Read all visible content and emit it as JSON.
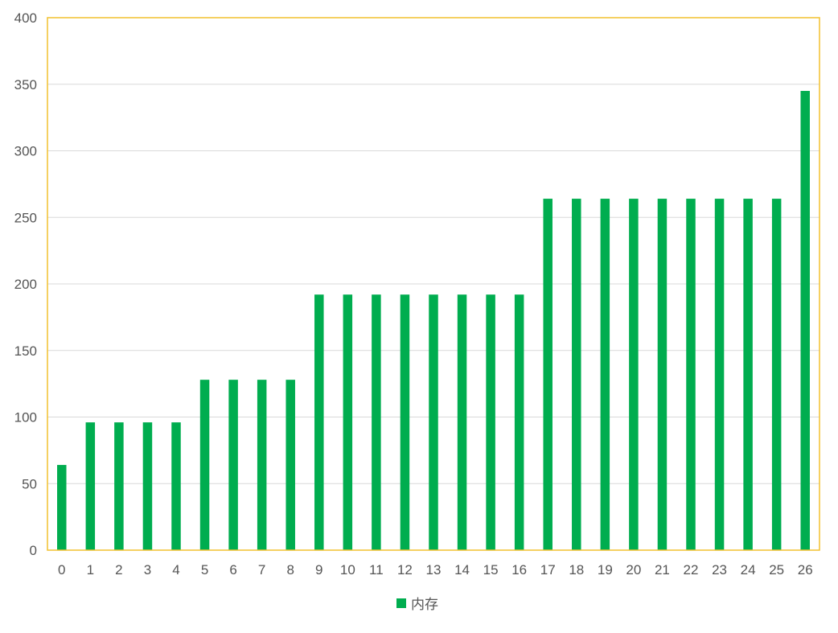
{
  "chart_data": {
    "type": "bar",
    "categories": [
      "0",
      "1",
      "2",
      "3",
      "4",
      "5",
      "6",
      "7",
      "8",
      "9",
      "10",
      "11",
      "12",
      "13",
      "14",
      "15",
      "16",
      "17",
      "18",
      "19",
      "20",
      "21",
      "22",
      "23",
      "24",
      "25",
      "26"
    ],
    "series": [
      {
        "name": "内存",
        "values": [
          64,
          96,
          96,
          96,
          96,
          128,
          128,
          128,
          128,
          192,
          192,
          192,
          192,
          192,
          192,
          192,
          192,
          264,
          264,
          264,
          264,
          264,
          264,
          264,
          264,
          264,
          345
        ]
      }
    ],
    "title": "",
    "xlabel": "",
    "ylabel": "",
    "ylim": [
      0,
      400
    ],
    "yticks": [
      0,
      50,
      100,
      150,
      200,
      250,
      300,
      350,
      400
    ],
    "grid": true,
    "legend_position": "bottom-center",
    "colors": {
      "bar": "#00AD4F",
      "plot_border": "#F2C12E",
      "grid": "#D9D9D9",
      "tick_text": "#555555"
    }
  }
}
